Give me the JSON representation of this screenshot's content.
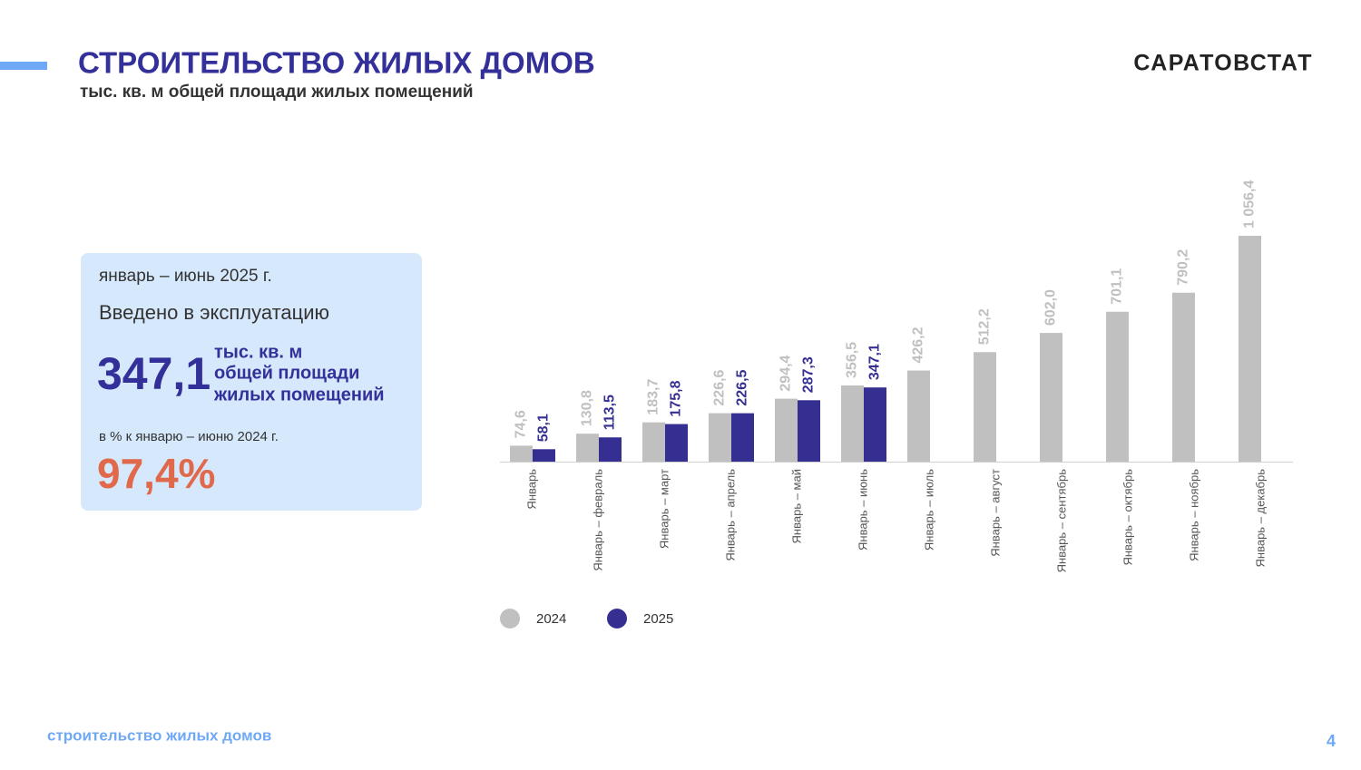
{
  "header": {
    "title": "СТРОИТЕЛЬСТВО ЖИЛЫХ ДОМОВ",
    "subtitle": "тыс. кв. м общей площади жилых помещений",
    "brand": "САРАТОВСТАТ"
  },
  "card": {
    "period": "январь – июнь 2025 г.",
    "caption": "Введено в эксплуатацию",
    "value": "347,1",
    "unit": [
      "тыс. кв. м",
      "общей площади",
      "жилых помещений"
    ],
    "compare_caption": "в % к  январю – июню 2024 г.",
    "percent": "97,4%"
  },
  "chart_data": {
    "type": "bar",
    "categories": [
      "Январь",
      "Январь – февраль",
      "Январь – март",
      "Январь – апрель",
      "Январь – май",
      "Январь – июнь",
      "Январь – июль",
      "Январь – август",
      "Январь – сентябрь",
      "Январь – октябрь",
      "Январь – ноябрь",
      "Январь – декабрь"
    ],
    "series": [
      {
        "name": "2024",
        "color": "#c0c0c0",
        "values": [
          74.6,
          130.8,
          183.7,
          226.6,
          294.4,
          356.5,
          426.2,
          512.2,
          602.0,
          701.1,
          790.2,
          1056.4
        ],
        "value_labels": [
          "74,6",
          "130,8",
          "183,7",
          "226,6",
          "294,4",
          "356,5",
          "426,2",
          "512,2",
          "602,0",
          "701,1",
          "790,2",
          "1 056,4"
        ]
      },
      {
        "name": "2025",
        "color": "#352f91",
        "values": [
          58.1,
          113.5,
          175.8,
          226.5,
          287.3,
          347.1,
          null,
          null,
          null,
          null,
          null,
          null
        ],
        "value_labels": [
          "58,1",
          "113,5",
          "175,8",
          "226,5",
          "287,3",
          "347,1",
          null,
          null,
          null,
          null,
          null,
          null
        ]
      }
    ]
  },
  "footer": {
    "text": "строительство жилых домов",
    "page": "4"
  }
}
